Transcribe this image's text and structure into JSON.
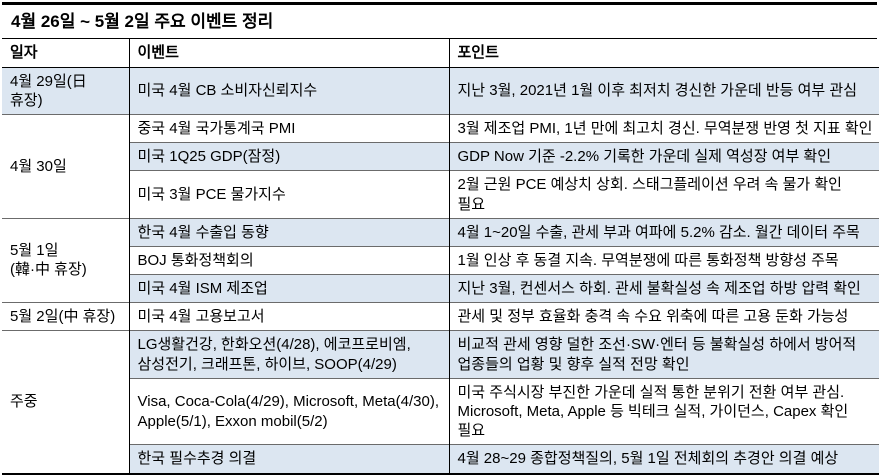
{
  "title": "4월 26일 ~ 5월 2일 주요 이벤트 정리",
  "table": {
    "headers": [
      "일자",
      "이벤트",
      "포인트"
    ],
    "stripe_color": "#dce6f1",
    "rows": [
      {
        "date": "4월 29일(日 휴장)",
        "event": "미국 4월 CB 소비자신뢰지수",
        "point": "지난 3월, 2021년 1월 이후 최저치 경신한 가운데 반등 여부 관심"
      },
      {
        "date": "4월 30일",
        "event": "중국 4월 국가통계국 PMI",
        "point": "3월 제조업 PMI, 1년 만에 최고치 경신. 무역분쟁 반영 첫 지표 확인"
      },
      {
        "event": "미국 1Q25 GDP(잠정)",
        "point": "GDP Now 기준 -2.2% 기록한 가운데 실제 역성장 여부 확인"
      },
      {
        "event": "미국 3월 PCE 물가지수",
        "point": "2월 근원 PCE 예상치 상회. 스태그플레이션 우려 속 물가 확인 필요"
      },
      {
        "date": "5월 1일\n(韓·中 휴장)",
        "event": "한국 4월 수출입 동향",
        "point": "4월 1~20일 수출, 관세 부과 여파에 5.2% 감소. 월간 데이터 주목"
      },
      {
        "event": "BOJ 통화정책회의",
        "point": "1월 인상 후 동결 지속. 무역분쟁에 따른 통화정책 방향성 주목"
      },
      {
        "event": "미국 4월 ISM 제조업",
        "point": "지난 3월, 컨센서스 하회. 관세 불확실성 속 제조업 하방 압력 확인"
      },
      {
        "date": "5월 2일(中 휴장)",
        "event": "미국 4월 고용보고서",
        "point": "관세 및 정부 효율화 충격 속 수요 위축에 따른 고용 둔화 가능성"
      },
      {
        "date": "주중",
        "event": "LG생활건강, 한화오션(4/28), 에코프로비엠, 삼성전기, 크래프톤, 하이브, SOOP(4/29)",
        "point": "비교적 관세 영향 덜한 조선·SW·엔터 등 불확실성 하에서 방어적 업종들의 업황 및 향후 실적 전망 확인"
      },
      {
        "event": "Visa, Coca-Cola(4/29), Microsoft, Meta(4/30), Apple(5/1), Exxon mobil(5/2)",
        "point": "미국 주식시장 부진한 가운데 실적 통한 분위기 전환 여부 관심. Microsoft, Meta, Apple 등 빅테크 실적, 가이던스, Capex 확인 필요"
      },
      {
        "event": "한국 필수추경 의결",
        "point": "4월 28~29 종합정책질의, 5월 1일 전체회의 추경안 의결 예상"
      }
    ]
  }
}
